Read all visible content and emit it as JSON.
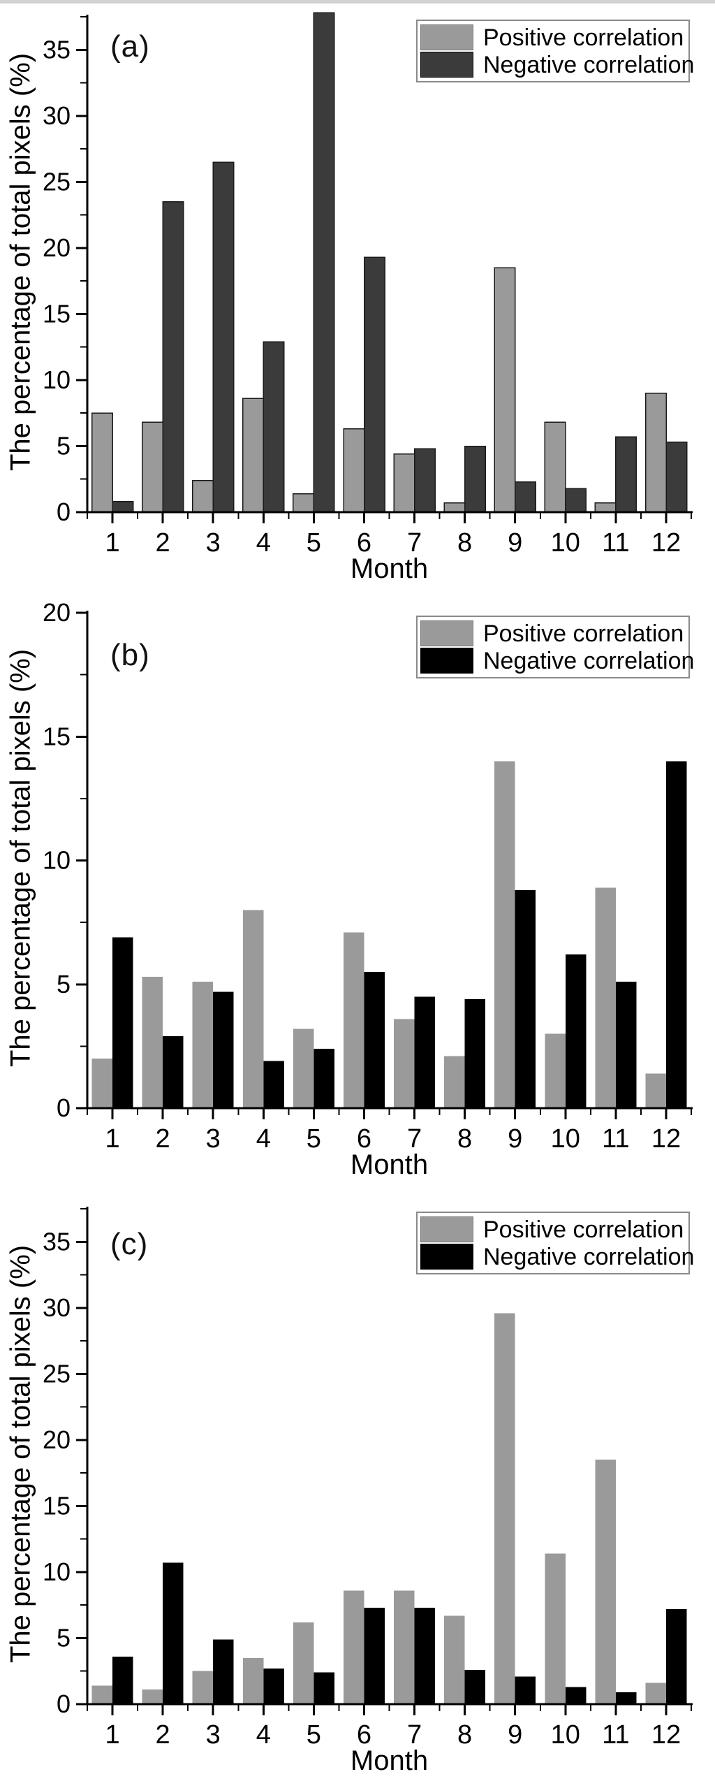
{
  "figure": {
    "background": "#ffffff",
    "axis_color": "#000000",
    "legend_border_color": "#8a8a8a"
  },
  "chart_data": [
    {
      "type": "bar",
      "panel_label": "(a)",
      "xlabel": "Month",
      "ylabel": "The percentage of total pixels (%)",
      "categories": [
        "1",
        "2",
        "3",
        "4",
        "5",
        "6",
        "7",
        "8",
        "9",
        "10",
        "11",
        "12"
      ],
      "series": [
        {
          "name": "Positive correlation",
          "color": "#9a9a9a",
          "stroke": "#1a1a1a",
          "values": [
            7.5,
            6.8,
            2.4,
            8.6,
            1.4,
            6.3,
            4.4,
            0.7,
            18.5,
            6.8,
            0.7,
            9.0
          ]
        },
        {
          "name": "Negative correlation",
          "color": "#3b3b3b",
          "stroke": "#1a1a1a",
          "values": [
            0.8,
            23.5,
            26.5,
            12.9,
            37.8,
            19.3,
            4.8,
            5.0,
            2.3,
            1.8,
            5.7,
            5.3
          ]
        }
      ],
      "ylim": [
        0,
        37.5
      ],
      "yticks": [
        0,
        5,
        10,
        15,
        20,
        25,
        30,
        35
      ],
      "yminor_step": 2.5,
      "legend_position": "top-right",
      "grid": false
    },
    {
      "type": "bar",
      "panel_label": "(b)",
      "xlabel": "Month",
      "ylabel": "The percentage of total pixels (%)",
      "categories": [
        "1",
        "2",
        "3",
        "4",
        "5",
        "6",
        "7",
        "8",
        "9",
        "10",
        "11",
        "12"
      ],
      "series": [
        {
          "name": "Positive correlation",
          "color": "#9a9a9a",
          "stroke": "",
          "values": [
            2.0,
            5.3,
            5.1,
            8.0,
            3.2,
            7.1,
            3.6,
            2.1,
            14.0,
            3.0,
            8.9,
            1.4
          ]
        },
        {
          "name": "Negative correlation",
          "color": "#000000",
          "stroke": "",
          "values": [
            6.9,
            2.9,
            4.7,
            1.9,
            2.4,
            5.5,
            4.5,
            4.4,
            8.8,
            6.2,
            5.1,
            14.0
          ]
        }
      ],
      "ylim": [
        0,
        20
      ],
      "yticks": [
        0,
        5,
        10,
        15,
        20
      ],
      "yminor_step": 2.5,
      "legend_position": "top-right",
      "grid": false
    },
    {
      "type": "bar",
      "panel_label": "(c)",
      "xlabel": "Month",
      "ylabel": "The percentage of total pixels (%)",
      "categories": [
        "1",
        "2",
        "3",
        "4",
        "5",
        "6",
        "7",
        "8",
        "9",
        "10",
        "11",
        "12"
      ],
      "series": [
        {
          "name": "Positive correlation",
          "color": "#9a9a9a",
          "stroke": "",
          "values": [
            1.4,
            1.1,
            2.5,
            3.5,
            6.2,
            8.6,
            8.6,
            6.7,
            29.6,
            11.4,
            18.5,
            1.6
          ]
        },
        {
          "name": "Negative correlation",
          "color": "#000000",
          "stroke": "",
          "values": [
            3.6,
            10.7,
            4.9,
            2.7,
            2.4,
            7.3,
            7.3,
            2.6,
            2.1,
            1.3,
            0.9,
            7.2
          ]
        }
      ],
      "ylim": [
        0,
        37.5
      ],
      "yticks": [
        0,
        5,
        10,
        15,
        20,
        25,
        30,
        35
      ],
      "yminor_step": 2.5,
      "legend_position": "top-right",
      "grid": false
    }
  ]
}
